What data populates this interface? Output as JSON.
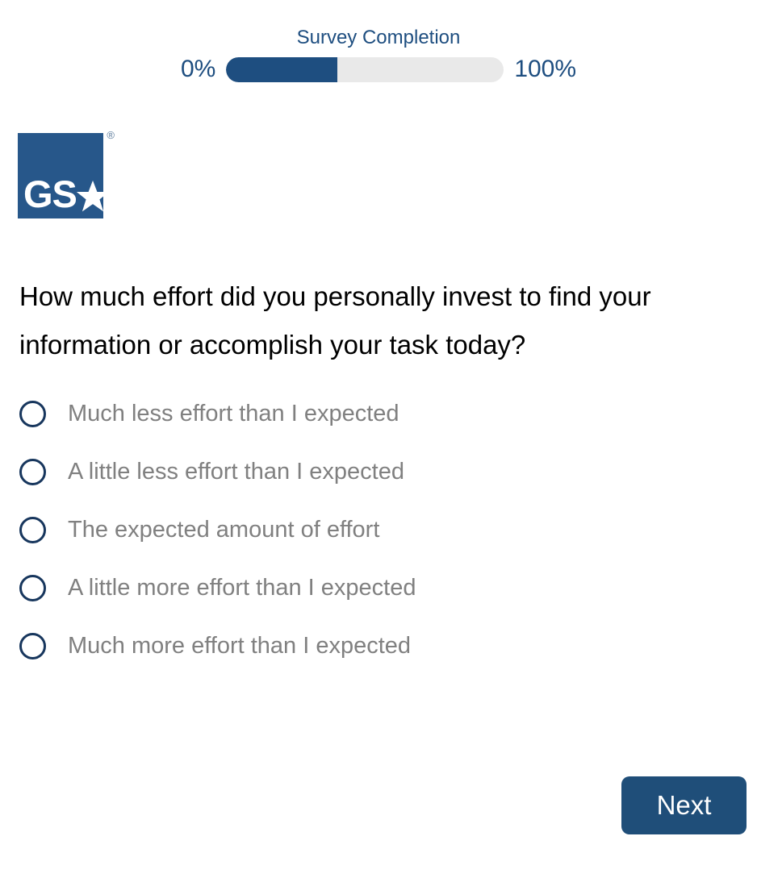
{
  "progress": {
    "title": "Survey Completion",
    "left_label": "0%",
    "right_label": "100%",
    "percent_complete": 40,
    "fill_color": "#1E4E80",
    "track_color": "#E9E9E9",
    "label_color": "#1E4E80"
  },
  "logo": {
    "name": "GSA",
    "letters": "GS",
    "registered_mark": "®",
    "background_color": "#27578A"
  },
  "question": "How much effort did you personally invest to find your information or accomplish your task today?",
  "options": [
    "Much less effort than I expected",
    "A little less effort than I expected",
    "The expected amount of effort",
    "A little more effort than I expected",
    "Much more effort than I expected"
  ],
  "next_button": {
    "label": "Next",
    "background_color": "#1F4E79",
    "text_color": "#FFFFFF"
  }
}
